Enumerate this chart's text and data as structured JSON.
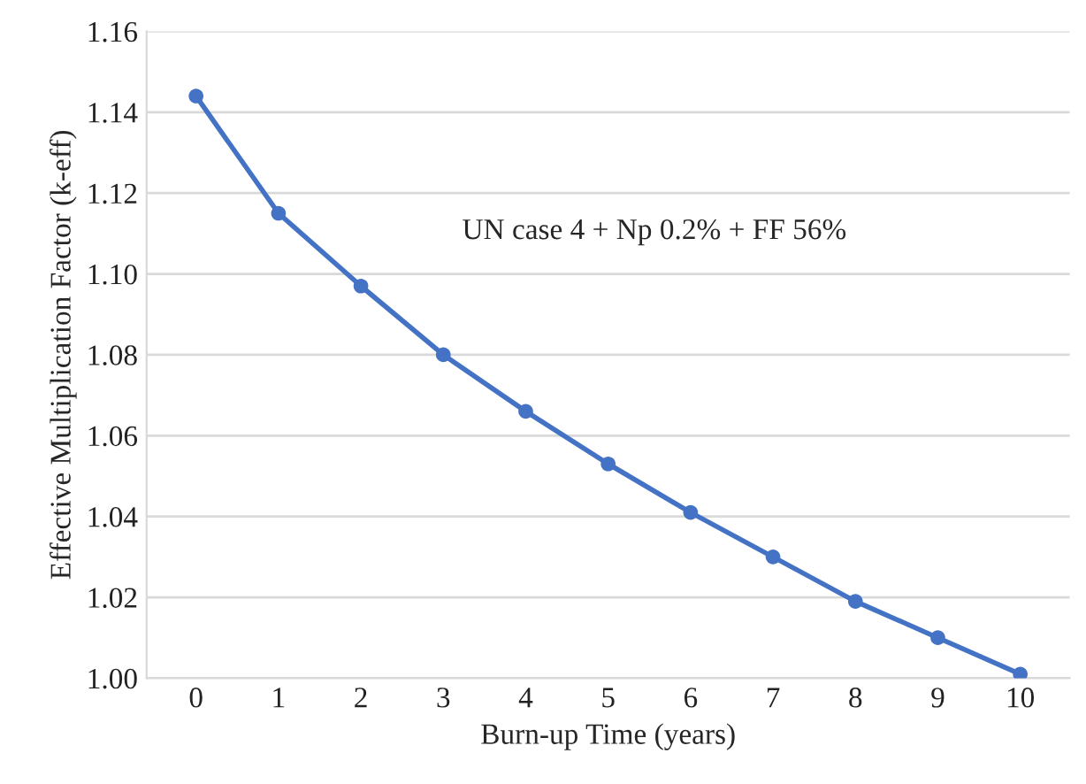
{
  "chart_data": {
    "type": "line",
    "xlabel": "Burn-up Time (years)",
    "ylabel": "Effective Multiplication Factor (k-eff)",
    "categories": [
      "0",
      "1",
      "2",
      "3",
      "4",
      "5",
      "6",
      "7",
      "8",
      "9",
      "10"
    ],
    "series": [
      {
        "color": "#4472c4",
        "values": [
          1.144,
          1.115,
          1.097,
          1.08,
          1.066,
          1.053,
          1.041,
          1.03,
          1.019,
          1.01,
          1.001
        ]
      }
    ],
    "ylim": [
      1.0,
      1.16
    ],
    "yticks": [
      {
        "value": 1.0,
        "label": "1.00"
      },
      {
        "value": 1.02,
        "label": "1.02"
      },
      {
        "value": 1.04,
        "label": "1.04"
      },
      {
        "value": 1.06,
        "label": "1.06"
      },
      {
        "value": 1.08,
        "label": "1.08"
      },
      {
        "value": 1.1,
        "label": "1.10"
      },
      {
        "value": 1.12,
        "label": "1.12"
      },
      {
        "value": 1.14,
        "label": "1.14"
      },
      {
        "value": 1.16,
        "label": "1.16"
      }
    ],
    "annotations": [
      "UN case 4 + Np 0.2% + FF 56%"
    ],
    "grid": "y",
    "legend": false,
    "marker": "circle",
    "line_style": "solid"
  }
}
